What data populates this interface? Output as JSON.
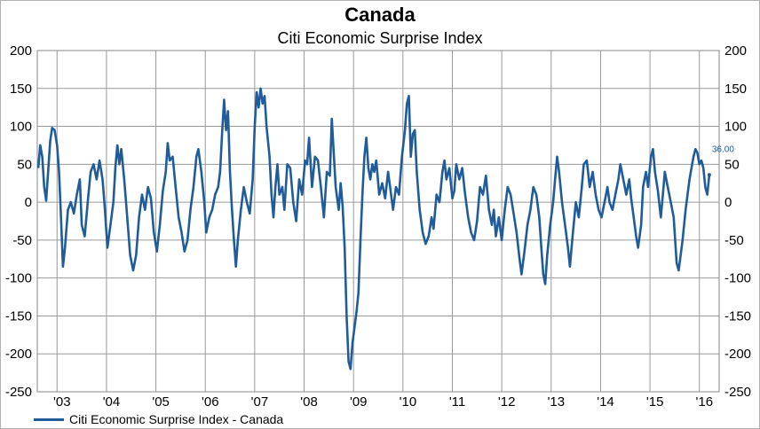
{
  "chart_data": {
    "type": "line",
    "title": "Canada",
    "subtitle": "Citi Economic Surprise Index",
    "xlabel": "",
    "ylabel": "",
    "ylim": [
      -250,
      200
    ],
    "yticks": [
      "200",
      "150",
      "100",
      "50",
      "0",
      "-50",
      "-100",
      "-150",
      "-200",
      "-250"
    ],
    "ytick_values": [
      200,
      150,
      100,
      50,
      0,
      -50,
      -100,
      -150,
      -200,
      -250
    ],
    "xticks": [
      "'03",
      "'04",
      "'05",
      "'06",
      "'07",
      "'08",
      "'09",
      "'10",
      "'11",
      "'12",
      "'13",
      "'14",
      "'15",
      "'16"
    ],
    "xlim": [
      2002.6,
      2016.4
    ],
    "grid": true,
    "legend": "bottom-left",
    "last_value_label": "36.00",
    "series": [
      {
        "name": "Citi Economic Surprise Index - Canada",
        "color": "#1f5c99",
        "points": [
          [
            2002.62,
            45
          ],
          [
            2002.66,
            75
          ],
          [
            2002.7,
            60
          ],
          [
            2002.74,
            20
          ],
          [
            2002.78,
            2
          ],
          [
            2002.82,
            40
          ],
          [
            2002.86,
            80
          ],
          [
            2002.9,
            98
          ],
          [
            2002.95,
            95
          ],
          [
            2003.0,
            75
          ],
          [
            2003.04,
            40
          ],
          [
            2003.08,
            -20
          ],
          [
            2003.12,
            -85
          ],
          [
            2003.16,
            -60
          ],
          [
            2003.22,
            -10
          ],
          [
            2003.28,
            0
          ],
          [
            2003.34,
            -15
          ],
          [
            2003.4,
            10
          ],
          [
            2003.46,
            30
          ],
          [
            2003.5,
            -30
          ],
          [
            2003.56,
            -45
          ],
          [
            2003.62,
            0
          ],
          [
            2003.68,
            40
          ],
          [
            2003.74,
            50
          ],
          [
            2003.8,
            30
          ],
          [
            2003.86,
            55
          ],
          [
            2003.92,
            30
          ],
          [
            2003.97,
            -10
          ],
          [
            2004.02,
            -60
          ],
          [
            2004.08,
            -30
          ],
          [
            2004.14,
            0
          ],
          [
            2004.18,
            45
          ],
          [
            2004.22,
            75
          ],
          [
            2004.26,
            50
          ],
          [
            2004.3,
            70
          ],
          [
            2004.36,
            30
          ],
          [
            2004.42,
            -20
          ],
          [
            2004.48,
            -70
          ],
          [
            2004.54,
            -90
          ],
          [
            2004.6,
            -70
          ],
          [
            2004.66,
            -20
          ],
          [
            2004.72,
            10
          ],
          [
            2004.78,
            -10
          ],
          [
            2004.84,
            20
          ],
          [
            2004.9,
            5
          ],
          [
            2004.96,
            -40
          ],
          [
            2005.02,
            -65
          ],
          [
            2005.08,
            -30
          ],
          [
            2005.14,
            15
          ],
          [
            2005.2,
            40
          ],
          [
            2005.24,
            78
          ],
          [
            2005.28,
            55
          ],
          [
            2005.34,
            60
          ],
          [
            2005.4,
            20
          ],
          [
            2005.46,
            -20
          ],
          [
            2005.52,
            -40
          ],
          [
            2005.58,
            -65
          ],
          [
            2005.64,
            -50
          ],
          [
            2005.7,
            -10
          ],
          [
            2005.76,
            20
          ],
          [
            2005.82,
            60
          ],
          [
            2005.86,
            70
          ],
          [
            2005.92,
            40
          ],
          [
            2005.98,
            0
          ],
          [
            2006.02,
            -40
          ],
          [
            2006.08,
            -20
          ],
          [
            2006.14,
            -10
          ],
          [
            2006.2,
            10
          ],
          [
            2006.26,
            20
          ],
          [
            2006.3,
            40
          ],
          [
            2006.34,
            90
          ],
          [
            2006.38,
            135
          ],
          [
            2006.42,
            95
          ],
          [
            2006.46,
            120
          ],
          [
            2006.5,
            40
          ],
          [
            2006.54,
            -10
          ],
          [
            2006.58,
            -50
          ],
          [
            2006.62,
            -85
          ],
          [
            2006.66,
            -50
          ],
          [
            2006.72,
            -10
          ],
          [
            2006.78,
            20
          ],
          [
            2006.84,
            0
          ],
          [
            2006.9,
            -15
          ],
          [
            2006.96,
            30
          ],
          [
            2007.0,
            100
          ],
          [
            2007.04,
            145
          ],
          [
            2007.08,
            125
          ],
          [
            2007.12,
            150
          ],
          [
            2007.16,
            130
          ],
          [
            2007.2,
            140
          ],
          [
            2007.24,
            100
          ],
          [
            2007.3,
            60
          ],
          [
            2007.34,
            10
          ],
          [
            2007.38,
            -20
          ],
          [
            2007.42,
            20
          ],
          [
            2007.46,
            50
          ],
          [
            2007.5,
            10
          ],
          [
            2007.56,
            20
          ],
          [
            2007.6,
            -10
          ],
          [
            2007.66,
            50
          ],
          [
            2007.72,
            45
          ],
          [
            2007.78,
            0
          ],
          [
            2007.84,
            -25
          ],
          [
            2007.9,
            30
          ],
          [
            2007.96,
            10
          ],
          [
            2008.02,
            55
          ],
          [
            2008.06,
            50
          ],
          [
            2008.1,
            85
          ],
          [
            2008.16,
            20
          ],
          [
            2008.22,
            60
          ],
          [
            2008.28,
            55
          ],
          [
            2008.34,
            20
          ],
          [
            2008.4,
            -20
          ],
          [
            2008.46,
            40
          ],
          [
            2008.52,
            35
          ],
          [
            2008.56,
            110
          ],
          [
            2008.6,
            65
          ],
          [
            2008.64,
            20
          ],
          [
            2008.7,
            -10
          ],
          [
            2008.74,
            25
          ],
          [
            2008.78,
            -5
          ],
          [
            2008.82,
            -60
          ],
          [
            2008.86,
            -150
          ],
          [
            2008.9,
            -210
          ],
          [
            2008.94,
            -220
          ],
          [
            2008.98,
            -185
          ],
          [
            2009.02,
            -165
          ],
          [
            2009.06,
            -145
          ],
          [
            2009.1,
            -120
          ],
          [
            2009.14,
            -50
          ],
          [
            2009.18,
            10
          ],
          [
            2009.22,
            60
          ],
          [
            2009.26,
            85
          ],
          [
            2009.3,
            45
          ],
          [
            2009.34,
            30
          ],
          [
            2009.38,
            50
          ],
          [
            2009.42,
            40
          ],
          [
            2009.46,
            55
          ],
          [
            2009.52,
            10
          ],
          [
            2009.58,
            25
          ],
          [
            2009.64,
            5
          ],
          [
            2009.7,
            40
          ],
          [
            2009.74,
            20
          ],
          [
            2009.8,
            -10
          ],
          [
            2009.86,
            20
          ],
          [
            2009.92,
            10
          ],
          [
            2009.98,
            60
          ],
          [
            2010.04,
            95
          ],
          [
            2010.08,
            130
          ],
          [
            2010.12,
            140
          ],
          [
            2010.16,
            60
          ],
          [
            2010.2,
            90
          ],
          [
            2010.24,
            95
          ],
          [
            2010.28,
            40
          ],
          [
            2010.34,
            -10
          ],
          [
            2010.4,
            -40
          ],
          [
            2010.46,
            -55
          ],
          [
            2010.52,
            -45
          ],
          [
            2010.58,
            -20
          ],
          [
            2010.62,
            -35
          ],
          [
            2010.68,
            10
          ],
          [
            2010.74,
            0
          ],
          [
            2010.8,
            40
          ],
          [
            2010.84,
            55
          ],
          [
            2010.88,
            30
          ],
          [
            2010.94,
            45
          ],
          [
            2011.0,
            5
          ],
          [
            2011.04,
            15
          ],
          [
            2011.08,
            50
          ],
          [
            2011.14,
            30
          ],
          [
            2011.2,
            45
          ],
          [
            2011.26,
            10
          ],
          [
            2011.32,
            -20
          ],
          [
            2011.38,
            -40
          ],
          [
            2011.44,
            -50
          ],
          [
            2011.5,
            -25
          ],
          [
            2011.56,
            20
          ],
          [
            2011.62,
            10
          ],
          [
            2011.68,
            35
          ],
          [
            2011.74,
            -10
          ],
          [
            2011.8,
            -30
          ],
          [
            2011.84,
            -10
          ],
          [
            2011.88,
            -45
          ],
          [
            2011.94,
            -20
          ],
          [
            2012.0,
            -50
          ],
          [
            2012.06,
            -10
          ],
          [
            2012.12,
            20
          ],
          [
            2012.18,
            10
          ],
          [
            2012.24,
            -15
          ],
          [
            2012.3,
            -40
          ],
          [
            2012.36,
            -75
          ],
          [
            2012.4,
            -95
          ],
          [
            2012.46,
            -65
          ],
          [
            2012.52,
            -30
          ],
          [
            2012.58,
            -10
          ],
          [
            2012.64,
            20
          ],
          [
            2012.7,
            10
          ],
          [
            2012.76,
            -20
          ],
          [
            2012.8,
            -60
          ],
          [
            2012.84,
            -95
          ],
          [
            2012.88,
            -108
          ],
          [
            2012.92,
            -70
          ],
          [
            2012.98,
            -30
          ],
          [
            2013.04,
            0
          ],
          [
            2013.08,
            30
          ],
          [
            2013.12,
            60
          ],
          [
            2013.16,
            40
          ],
          [
            2013.22,
            0
          ],
          [
            2013.28,
            -30
          ],
          [
            2013.34,
            -60
          ],
          [
            2013.38,
            -85
          ],
          [
            2013.44,
            -40
          ],
          [
            2013.5,
            0
          ],
          [
            2013.56,
            -20
          ],
          [
            2013.62,
            20
          ],
          [
            2013.66,
            50
          ],
          [
            2013.72,
            55
          ],
          [
            2013.78,
            20
          ],
          [
            2013.84,
            40
          ],
          [
            2013.9,
            10
          ],
          [
            2013.96,
            -10
          ],
          [
            2014.02,
            -20
          ],
          [
            2014.08,
            0
          ],
          [
            2014.14,
            20
          ],
          [
            2014.18,
            0
          ],
          [
            2014.24,
            -10
          ],
          [
            2014.3,
            10
          ],
          [
            2014.36,
            30
          ],
          [
            2014.4,
            50
          ],
          [
            2014.46,
            30
          ],
          [
            2014.52,
            10
          ],
          [
            2014.58,
            30
          ],
          [
            2014.62,
            5
          ],
          [
            2014.68,
            -25
          ],
          [
            2014.72,
            -45
          ],
          [
            2014.76,
            -60
          ],
          [
            2014.82,
            -30
          ],
          [
            2014.86,
            20
          ],
          [
            2014.92,
            40
          ],
          [
            2014.96,
            20
          ],
          [
            2015.02,
            60
          ],
          [
            2015.06,
            70
          ],
          [
            2015.1,
            40
          ],
          [
            2015.16,
            15
          ],
          [
            2015.22,
            -20
          ],
          [
            2015.26,
            10
          ],
          [
            2015.3,
            40
          ],
          [
            2015.36,
            20
          ],
          [
            2015.42,
            0
          ],
          [
            2015.48,
            -20
          ],
          [
            2015.54,
            -80
          ],
          [
            2015.58,
            -90
          ],
          [
            2015.62,
            -70
          ],
          [
            2015.66,
            -50
          ],
          [
            2015.72,
            -10
          ],
          [
            2015.76,
            10
          ],
          [
            2015.8,
            30
          ],
          [
            2015.84,
            45
          ],
          [
            2015.88,
            60
          ],
          [
            2015.92,
            70
          ],
          [
            2015.96,
            65
          ],
          [
            2016.0,
            50
          ],
          [
            2016.04,
            55
          ],
          [
            2016.08,
            45
          ],
          [
            2016.12,
            20
          ],
          [
            2016.16,
            10
          ],
          [
            2016.2,
            36
          ]
        ]
      }
    ]
  }
}
